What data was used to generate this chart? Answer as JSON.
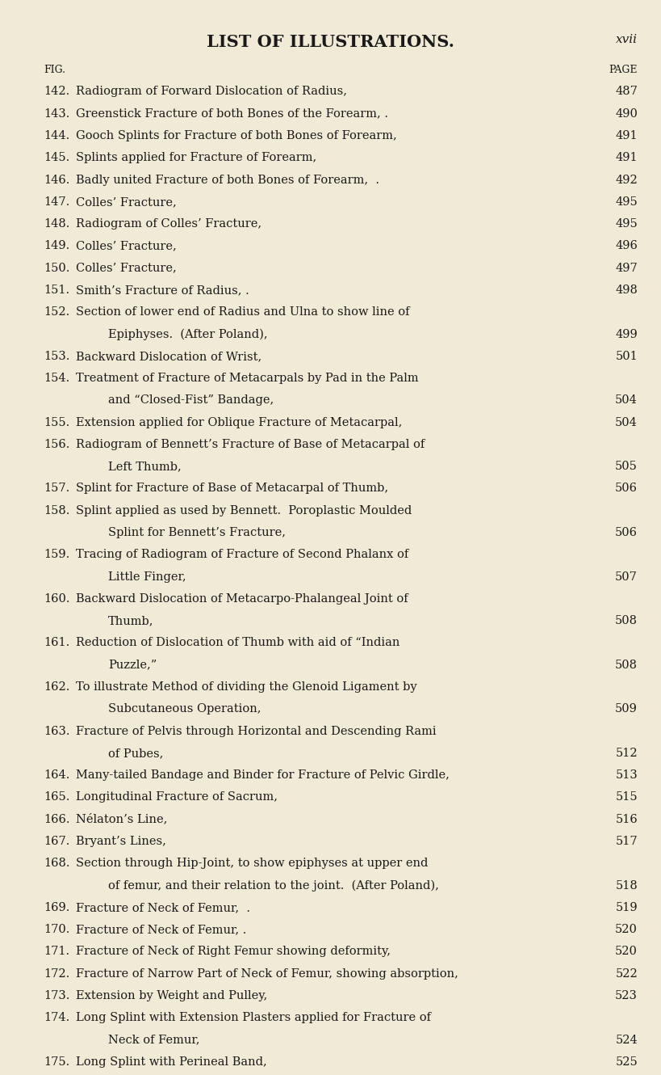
{
  "title": "LIST OF ILLUSTRATIONS.",
  "title_right": "xvii",
  "col_left": "FIG.",
  "col_right": "PAGE",
  "bg_color": "#f0ead6",
  "text_color": "#1a1a1a",
  "entries": [
    {
      "num": "142.",
      "text": "Radiogram of Forward Dislocation of Radius,",
      "page": "487",
      "wrap": null
    },
    {
      "num": "143.",
      "text": "Greenstick Fracture of both Bones of the Forearm, .",
      "page": "490",
      "wrap": null
    },
    {
      "num": "144.",
      "text": "Gooch Splints for Fracture of both Bones of Forearm,",
      "page": "491",
      "wrap": null
    },
    {
      "num": "145.",
      "text": "Splints applied for Fracture of Forearm,",
      "page": "491",
      "wrap": null
    },
    {
      "num": "146.",
      "text": "Badly united Fracture of both Bones of Forearm,  .",
      "page": "492",
      "wrap": null
    },
    {
      "num": "147.",
      "text": "Colles’ Fracture,",
      "page": "495",
      "wrap": null
    },
    {
      "num": "148.",
      "text": "Radiogram of Colles’ Fracture,",
      "page": "495",
      "wrap": null
    },
    {
      "num": "149.",
      "text": "Colles’ Fracture,",
      "page": "496",
      "wrap": null
    },
    {
      "num": "150.",
      "text": "Colles’ Fracture,",
      "page": "497",
      "wrap": null
    },
    {
      "num": "151.",
      "text": "Smith’s Fracture of Radius, .",
      "page": "498",
      "wrap": null
    },
    {
      "num": "152.",
      "text": "Section of lower end of Radius and Ulna to show line of",
      "page": null,
      "wrap": "Epiphyses.  (After Poland),"
    },
    {
      "num": "153.",
      "text": "Backward Dislocation of Wrist,",
      "page": "501",
      "wrap": null
    },
    {
      "num": "154.",
      "text": "Treatment of Fracture of Metacarpals by Pad in the Palm",
      "page": null,
      "wrap": "and “Closed-Fist” Bandage,"
    },
    {
      "num": "155.",
      "text": "Extension applied for Oblique Fracture of Metacarpal,",
      "page": "504",
      "wrap": null
    },
    {
      "num": "156.",
      "text": "Radiogram of Bennett’s Fracture of Base of Metacarpal of",
      "page": null,
      "wrap": "Left Thumb,"
    },
    {
      "num": "157.",
      "text": "Splint for Fracture of Base of Metacarpal of Thumb,",
      "page": "506",
      "wrap": null
    },
    {
      "num": "158.",
      "text": "Splint applied as used by Bennett.  Poroplastic Moulded",
      "page": null,
      "wrap": "Splint for Bennett’s Fracture,"
    },
    {
      "num": "159.",
      "text": "Tracing of Radiogram of Fracture of Second Phalanx of",
      "page": null,
      "wrap": "Little Finger,"
    },
    {
      "num": "160.",
      "text": "Backward Dislocation of Metacarpo-Phalangeal Joint of",
      "page": null,
      "wrap": "Thumb,"
    },
    {
      "num": "161.",
      "text": "Reduction of Dislocation of Thumb with aid of “Indian",
      "page": null,
      "wrap": "Puzzle,”"
    },
    {
      "num": "162.",
      "text": "To illustrate Method of dividing the Glenoid Ligament by",
      "page": null,
      "wrap": "Subcutaneous Operation,"
    },
    {
      "num": "163.",
      "text": "Fracture of Pelvis through Horizontal and Descending Rami",
      "page": null,
      "wrap": "of Pubes,"
    },
    {
      "num": "164.",
      "text": "Many-tailed Bandage and Binder for Fracture of Pelvic Girdle,",
      "page": "513",
      "wrap": null
    },
    {
      "num": "165.",
      "text": "Longitudinal Fracture of Sacrum,",
      "page": "515",
      "wrap": null
    },
    {
      "num": "166.",
      "text": "Nélaton’s Line,",
      "page": "516",
      "wrap": null
    },
    {
      "num": "167.",
      "text": "Bryant’s Lines,",
      "page": "517",
      "wrap": null
    },
    {
      "num": "168.",
      "text": "Section through Hip-Joint, to show epiphyses at upper end",
      "page": null,
      "wrap": "of femur, and their relation to the joint.  (After Poland),"
    },
    {
      "num": "169.",
      "text": "Fracture of Neck of Femur,  .",
      "page": "519",
      "wrap": null
    },
    {
      "num": "170.",
      "text": "Fracture of Neck of Femur, .",
      "page": "520",
      "wrap": null
    },
    {
      "num": "171.",
      "text": "Fracture of Neck of Right Femur showing deformity,",
      "page": "520",
      "wrap": null
    },
    {
      "num": "172.",
      "text": "Fracture of Narrow Part of Neck of Femur, showing absorption,",
      "page": "522",
      "wrap": null
    },
    {
      "num": "173.",
      "text": "Extension by Weight and Pulley,",
      "page": "523",
      "wrap": null
    },
    {
      "num": "174.",
      "text": "Long Splint with Extension Plasters applied for Fracture of",
      "page": null,
      "wrap": "Neck of Femur,"
    },
    {
      "num": "175.",
      "text": "Long Splint with Perineal Band,",
      "page": "525",
      "wrap": null
    }
  ],
  "wrap_pages": {
    "152": "499",
    "154": "504",
    "156": "505",
    "158": "506",
    "159": "507",
    "160": "508",
    "161": "508",
    "162": "509",
    "163": "512",
    "168": "518",
    "174": "524"
  }
}
